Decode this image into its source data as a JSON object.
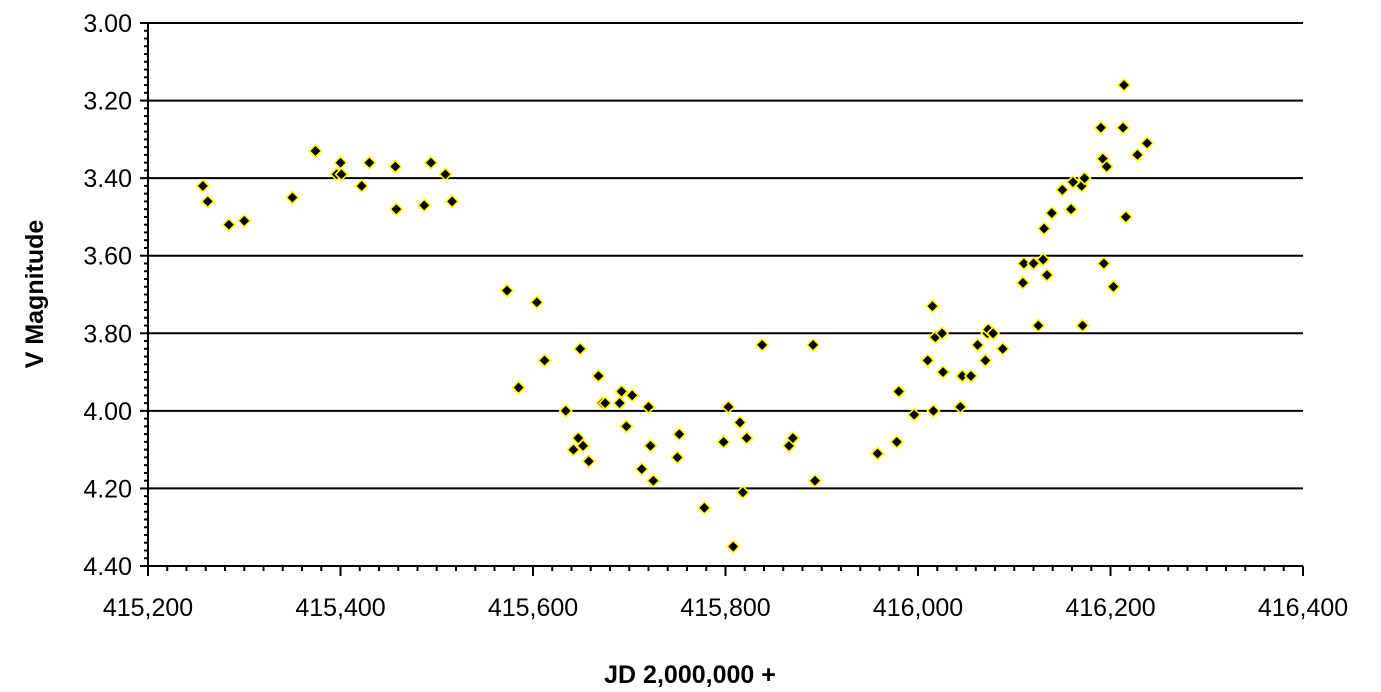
{
  "chart_data": {
    "type": "scatter",
    "title": "",
    "xlabel": "JD 2,000,000 +",
    "ylabel": "V Magnitude",
    "xlim": [
      415200,
      416400
    ],
    "ylim": [
      3.0,
      4.4
    ],
    "y_inverted": true,
    "x_ticks": [
      415200,
      415400,
      415600,
      415800,
      416000,
      416200,
      416400
    ],
    "x_tick_labels": [
      "415,200",
      "415,400",
      "415,600",
      "415,800",
      "416,000",
      "416,200",
      "416,400"
    ],
    "y_ticks": [
      3.0,
      3.2,
      3.4,
      3.6,
      3.8,
      4.0,
      4.2,
      4.4
    ],
    "y_tick_labels": [
      "3.00",
      "3.20",
      "3.40",
      "3.60",
      "3.80",
      "4.00",
      "4.20",
      "4.40"
    ],
    "grid": "horizontal",
    "marker_fill": "#000000",
    "marker_edge": "#ffff00",
    "series": [
      {
        "x": [
          415257,
          415262,
          415284,
          415300,
          415350,
          415374,
          415396,
          415400,
          415401,
          415422,
          415430,
          415457,
          415458,
          415487,
          415494,
          415509,
          415516,
          415573,
          415585,
          415604,
          415612,
          415634,
          415642,
          415647,
          415649,
          415652,
          415658,
          415668,
          415672,
          415675,
          415690,
          415692,
          415697,
          415703,
          415713,
          415720,
          415722,
          415725,
          415750,
          415752,
          415778,
          415798,
          415803,
          415808,
          415815,
          415818,
          415822,
          415838,
          415866,
          415870,
          415891,
          415893,
          415958,
          415978,
          415980,
          415996,
          416010,
          416015,
          416016,
          416018,
          416025,
          416026,
          416044,
          416046,
          416055,
          416062,
          416070,
          416072,
          416073,
          416078,
          416088,
          416109,
          416110,
          416120,
          416125,
          416130,
          416131,
          416134,
          416139,
          416150,
          416159,
          416161,
          416170,
          416171,
          416173,
          416190,
          416192,
          416193,
          416196,
          416203,
          416213,
          416214,
          416216,
          416228,
          416238
        ],
        "y": [
          3.42,
          3.46,
          3.52,
          3.51,
          3.45,
          3.33,
          3.39,
          3.36,
          3.39,
          3.42,
          3.36,
          3.37,
          3.48,
          3.47,
          3.36,
          3.39,
          3.46,
          3.69,
          3.94,
          3.72,
          3.87,
          4.0,
          4.1,
          4.07,
          3.84,
          4.09,
          4.13,
          3.91,
          3.98,
          3.98,
          3.98,
          3.95,
          4.04,
          3.96,
          4.15,
          3.99,
          4.09,
          4.18,
          4.12,
          4.06,
          4.25,
          4.08,
          3.99,
          4.35,
          4.03,
          4.21,
          4.07,
          3.83,
          4.09,
          4.07,
          3.83,
          4.18,
          4.11,
          4.08,
          3.95,
          4.01,
          3.87,
          3.73,
          4.0,
          3.81,
          3.8,
          3.9,
          3.99,
          3.91,
          3.91,
          3.83,
          3.87,
          3.8,
          3.79,
          3.8,
          3.84,
          3.67,
          3.62,
          3.62,
          3.78,
          3.61,
          3.53,
          3.65,
          3.49,
          3.43,
          3.48,
          3.41,
          3.42,
          3.78,
          3.4,
          3.27,
          3.35,
          3.62,
          3.37,
          3.68,
          3.27,
          3.16,
          3.5,
          3.34,
          3.31
        ]
      }
    ]
  }
}
